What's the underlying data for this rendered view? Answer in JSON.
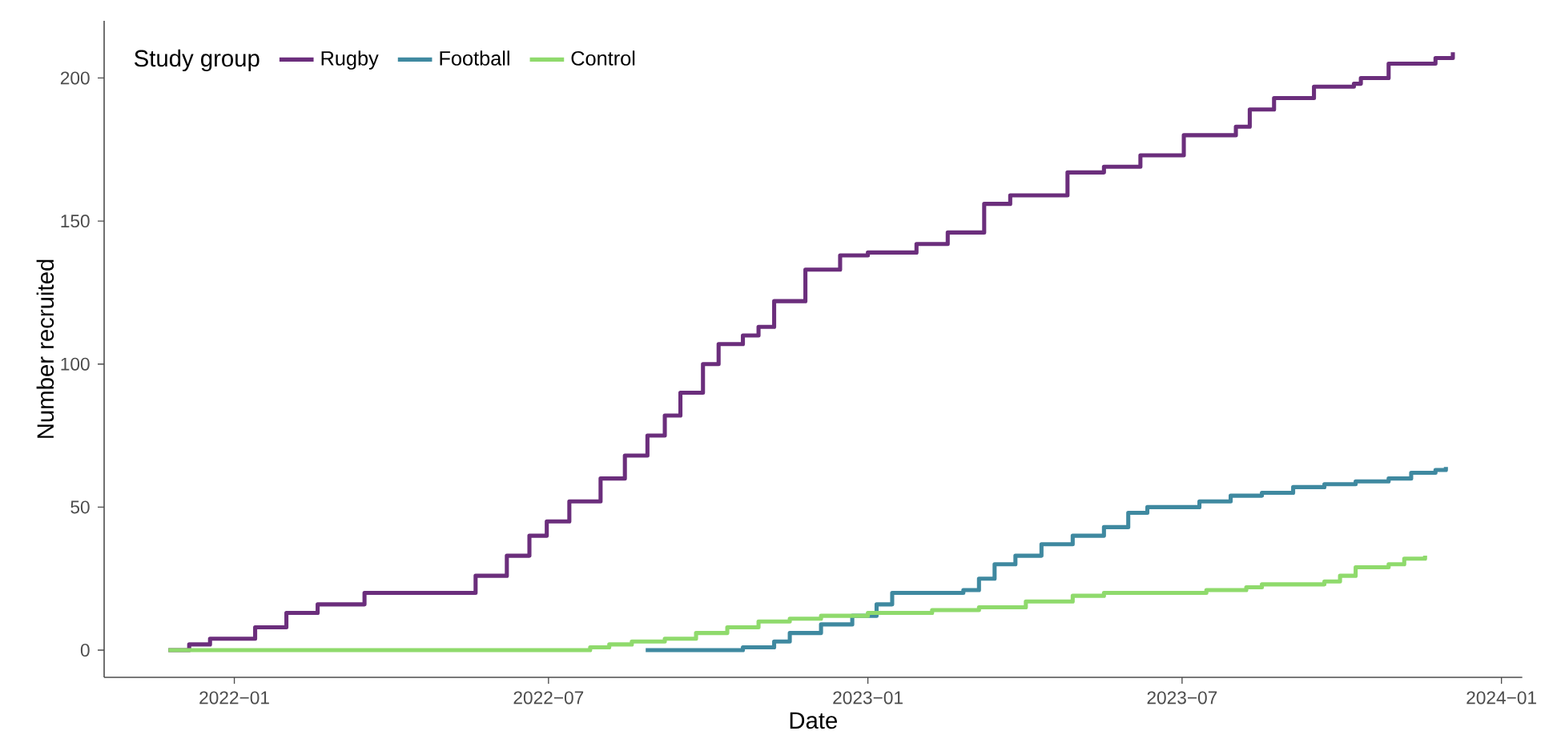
{
  "chart_data": {
    "type": "step",
    "xlabel": "Date",
    "ylabel": "Number recruited",
    "legend_title": "Study group",
    "legend": "top left",
    "grid": false,
    "xlim": [
      "2021-10-18",
      "2024-01-13"
    ],
    "ylim": [
      -9.5,
      220
    ],
    "xticks": [
      {
        "value": "2022-01",
        "label": "2022−01"
      },
      {
        "value": "2022-07",
        "label": "2022−07"
      },
      {
        "value": "2023-01",
        "label": "2023−01"
      },
      {
        "value": "2023-07",
        "label": "2023−07"
      },
      {
        "value": "2024-01",
        "label": "2024−01"
      }
    ],
    "yticks": [
      0,
      50,
      100,
      150,
      200
    ],
    "series": [
      {
        "name": "Rugby",
        "color": "#6b2e7c",
        "x": [
          "2021-11-24",
          "2021-12-06",
          "2021-12-18",
          "2022-01-13",
          "2022-01-31",
          "2022-02-18",
          "2022-03-17",
          "2022-05-20",
          "2022-06-07",
          "2022-06-20",
          "2022-06-30",
          "2022-07-13",
          "2022-07-31",
          "2022-08-14",
          "2022-08-27",
          "2022-09-06",
          "2022-09-15",
          "2022-09-28",
          "2022-10-07",
          "2022-10-21",
          "2022-10-30",
          "2022-11-08",
          "2022-11-26",
          "2022-12-16",
          "2023-01-01",
          "2023-01-29",
          "2023-02-16",
          "2023-03-09",
          "2023-03-24",
          "2023-04-26",
          "2023-05-17",
          "2023-06-07",
          "2023-07-02",
          "2023-08-01",
          "2023-08-09",
          "2023-08-23",
          "2023-09-15",
          "2023-10-08",
          "2023-10-12",
          "2023-10-28",
          "2023-11-24",
          "2023-12-04"
        ],
        "values": [
          0,
          2,
          4,
          8,
          13,
          16,
          20,
          26,
          33,
          40,
          45,
          52,
          60,
          68,
          75,
          82,
          90,
          100,
          107,
          110,
          113,
          122,
          133,
          138,
          139,
          142,
          146,
          156,
          159,
          167,
          169,
          173,
          180,
          183,
          189,
          193,
          197,
          198,
          200,
          205,
          207,
          209
        ]
      },
      {
        "name": "Football",
        "color": "#3f89a0",
        "x": [
          "2022-08-26",
          "2022-10-21",
          "2022-11-08",
          "2022-11-17",
          "2022-12-05",
          "2022-12-23",
          "2023-01-06",
          "2023-01-15",
          "2023-02-25",
          "2023-03-06",
          "2023-03-15",
          "2023-03-27",
          "2023-04-11",
          "2023-04-29",
          "2023-05-17",
          "2023-05-31",
          "2023-06-11",
          "2023-07-11",
          "2023-07-29",
          "2023-08-16",
          "2023-09-03",
          "2023-09-21",
          "2023-10-09",
          "2023-10-28",
          "2023-11-10",
          "2023-11-24",
          "2023-11-30"
        ],
        "values": [
          0,
          1,
          3,
          6,
          9,
          12,
          16,
          20,
          21,
          25,
          30,
          33,
          37,
          40,
          43,
          48,
          50,
          52,
          54,
          55,
          57,
          58,
          59,
          60,
          62,
          63,
          64
        ]
      },
      {
        "name": "Control",
        "color": "#8fda6c",
        "x": [
          "2021-11-24",
          "2022-07-25",
          "2022-08-05",
          "2022-08-18",
          "2022-09-06",
          "2022-09-24",
          "2022-10-12",
          "2022-10-30",
          "2022-11-17",
          "2022-12-05",
          "2023-01-01",
          "2023-02-07",
          "2023-03-06",
          "2023-04-02",
          "2023-04-29",
          "2023-05-17",
          "2023-07-15",
          "2023-08-07",
          "2023-08-16",
          "2023-09-21",
          "2023-09-30",
          "2023-10-09",
          "2023-10-28",
          "2023-11-06",
          "2023-11-18"
        ],
        "values": [
          0,
          1,
          2,
          3,
          4,
          6,
          8,
          10,
          11,
          12,
          13,
          14,
          15,
          17,
          19,
          20,
          21,
          22,
          23,
          24,
          26,
          29,
          30,
          32,
          33
        ]
      }
    ]
  }
}
